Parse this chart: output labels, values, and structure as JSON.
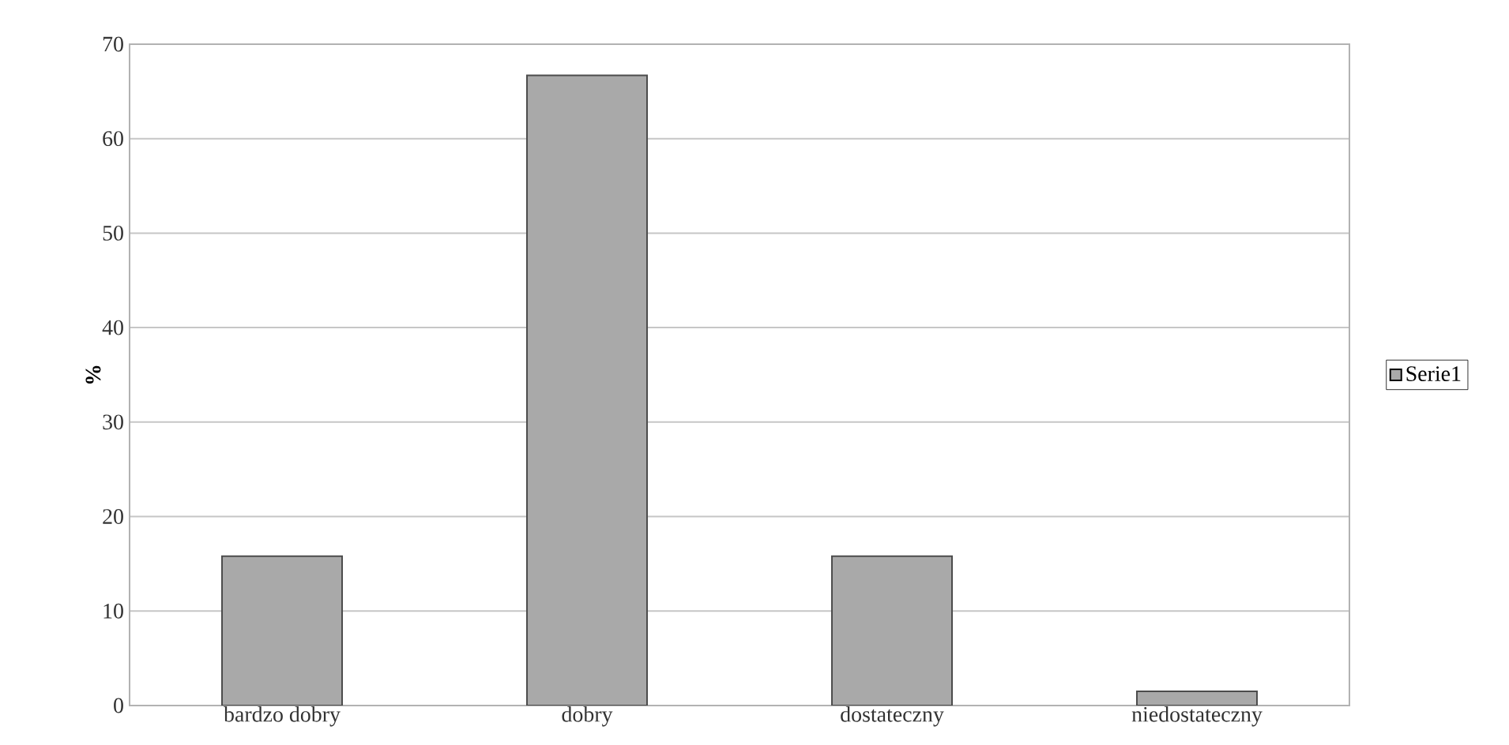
{
  "chart_data": {
    "type": "bar",
    "ylabel": "%",
    "categories": [
      "bardzo dobry",
      "dobry",
      "dostateczny",
      "niedostateczny"
    ],
    "series": [
      {
        "name": "Serie1",
        "color": "#a9a9a9",
        "values": [
          15.8,
          66.7,
          15.8,
          1.5
        ]
      }
    ],
    "ylim": [
      0,
      70
    ],
    "yticks": [
      0,
      10,
      20,
      30,
      40,
      50,
      60,
      70
    ],
    "grid": "y",
    "legend": "right"
  }
}
